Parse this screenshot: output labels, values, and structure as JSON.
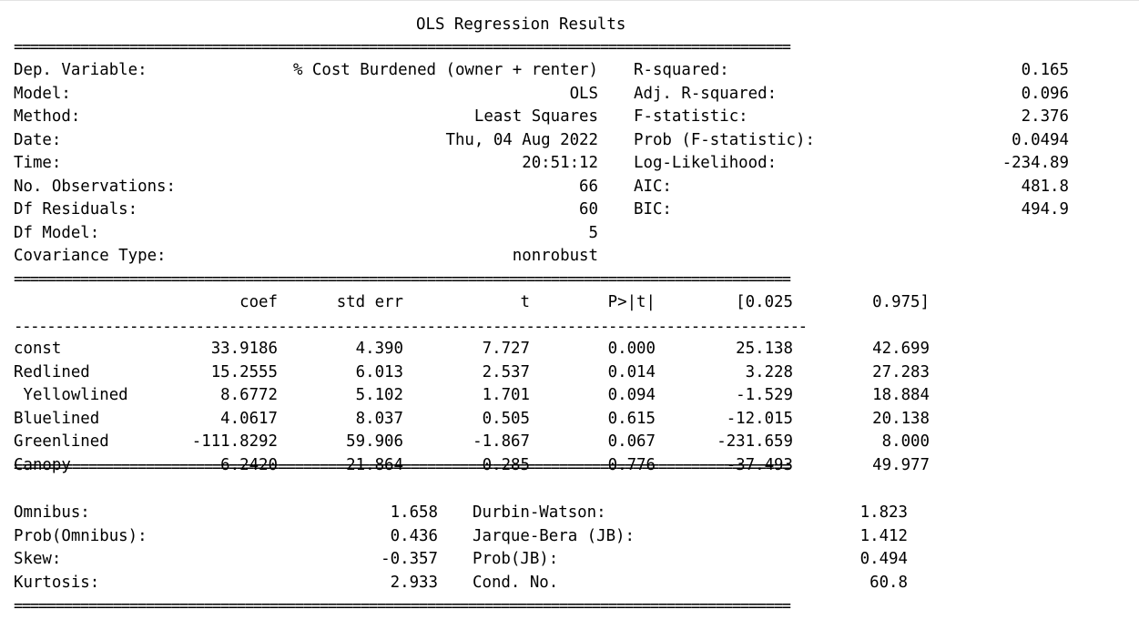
{
  "title": "OLS Regression Results",
  "sep_double": "==============================================================================================",
  "sep_single": "------------------------------------------------------------------------------------------------",
  "header": {
    "left": [
      {
        "label": "Dep. Variable:",
        "value": "% Cost Burdened (owner + renter)"
      },
      {
        "label": "Model:",
        "value": "OLS"
      },
      {
        "label": "Method:",
        "value": "Least Squares"
      },
      {
        "label": "Date:",
        "value": "Thu, 04 Aug 2022"
      },
      {
        "label": "Time:",
        "value": "20:51:12"
      },
      {
        "label": "No. Observations:",
        "value": "66"
      },
      {
        "label": "Df Residuals:",
        "value": "60"
      },
      {
        "label": "Df Model:",
        "value": "5"
      },
      {
        "label": "Covariance Type:",
        "value": "nonrobust"
      }
    ],
    "right": [
      {
        "label": "R-squared:",
        "value": "0.165"
      },
      {
        "label": "Adj. R-squared:",
        "value": "0.096"
      },
      {
        "label": "F-statistic:",
        "value": "2.376"
      },
      {
        "label": "Prob (F-statistic):",
        "value": "0.0494"
      },
      {
        "label": "Log-Likelihood:",
        "value": "-234.89"
      },
      {
        "label": "AIC:",
        "value": "481.8"
      },
      {
        "label": "BIC:",
        "value": "494.9"
      }
    ]
  },
  "coef_table": {
    "columns": [
      "coef",
      "std err",
      "t",
      "P>|t|",
      "[0.025",
      "0.975]"
    ],
    "rows": [
      {
        "name": "const",
        "values": [
          "33.9186",
          "4.390",
          "7.727",
          "0.000",
          "25.138",
          "42.699"
        ]
      },
      {
        "name": "Redlined",
        "values": [
          "15.2555",
          "6.013",
          "2.537",
          "0.014",
          "3.228",
          "27.283"
        ]
      },
      {
        "name": " Yellowlined",
        "values": [
          "8.6772",
          "5.102",
          "1.701",
          "0.094",
          "-1.529",
          "18.884"
        ]
      },
      {
        "name": "Bluelined",
        "values": [
          "4.0617",
          "8.037",
          "0.505",
          "0.615",
          "-12.015",
          "20.138"
        ]
      },
      {
        "name": "Greenlined",
        "values": [
          "-111.8292",
          "59.906",
          "-1.867",
          "0.067",
          "-231.659",
          "8.000"
        ]
      },
      {
        "name": "Canopy",
        "values": [
          "6.2420",
          "21.864",
          "0.285",
          "0.776",
          "-37.493",
          "49.977"
        ]
      }
    ]
  },
  "diagnostics": {
    "left": [
      {
        "label": "Omnibus:",
        "value": "1.658"
      },
      {
        "label": "Prob(Omnibus):",
        "value": "0.436"
      },
      {
        "label": "Skew:",
        "value": "-0.357"
      },
      {
        "label": "Kurtosis:",
        "value": "2.933"
      }
    ],
    "right": [
      {
        "label": "Durbin-Watson:",
        "value": "1.823"
      },
      {
        "label": "Jarque-Bera (JB):",
        "value": "1.412"
      },
      {
        "label": "Prob(JB):",
        "value": "0.494"
      },
      {
        "label": "Cond. No.",
        "value": "60.8"
      }
    ]
  }
}
